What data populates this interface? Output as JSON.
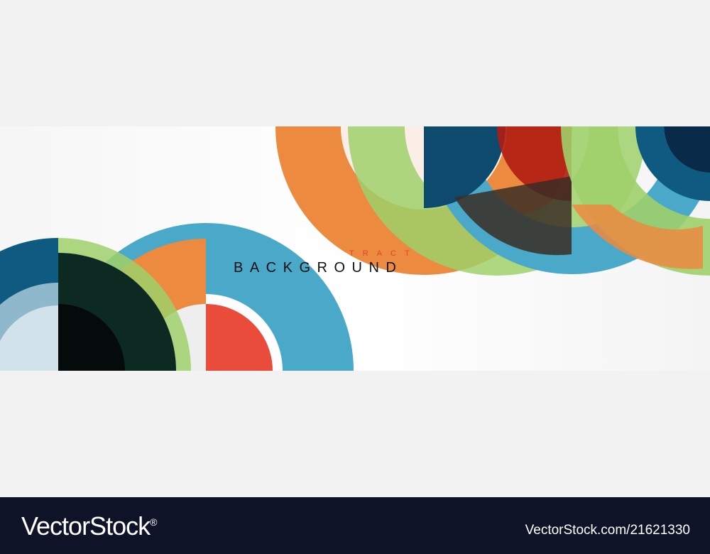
{
  "artwork": {
    "headline": "BACKGROUND",
    "subheadline": "TRACT",
    "colors": {
      "orange": "#ec8a3f",
      "blue": "#4aa8c9",
      "navy": "#0e4a6e",
      "green": "#9fd06a",
      "red": "#d8241c",
      "dark": "#0d2a22"
    }
  },
  "footer": {
    "brand": "VectorStock",
    "registered": "®",
    "url": "VectorStock.com/21621330"
  }
}
